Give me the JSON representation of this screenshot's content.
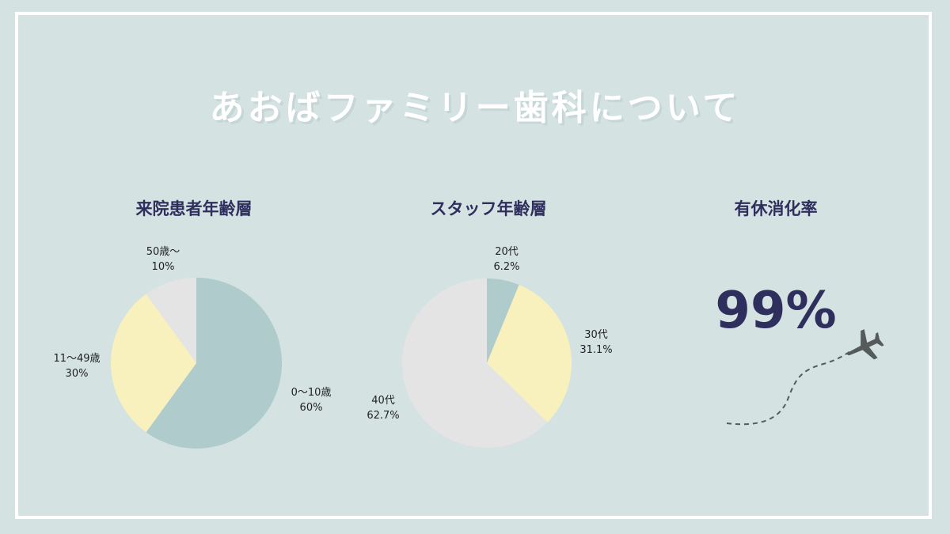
{
  "title": "あおばファミリー歯科について",
  "panels": {
    "patients_title": "来院患者年齢層",
    "staff_title": "スタッフ年齢層",
    "vacation_title": "有休消化率",
    "vacation_value": "99%"
  },
  "colors": {
    "background": "#d4e2e2",
    "frame": "#ffffff",
    "heading": "#2f2f5e",
    "teal": "#b0cbcb",
    "yellow": "#f8f1bd",
    "gray": "#e4e4e4",
    "plane": "#555a5a"
  },
  "icons": [
    "airplane-icon",
    "dashed-flight-path"
  ],
  "chart_data": [
    {
      "type": "pie",
      "title": "来院患者年齢層",
      "slices": [
        {
          "label": "0〜10歳",
          "value": 60,
          "value_label": "60%",
          "color": "#b0cbcb"
        },
        {
          "label": "11〜49歳",
          "value": 30,
          "value_label": "30%",
          "color": "#f8f1bd"
        },
        {
          "label": "50歳〜",
          "value": 10,
          "value_label": "10%",
          "color": "#e4e4e4"
        }
      ]
    },
    {
      "type": "pie",
      "title": "スタッフ年齢層",
      "slices": [
        {
          "label": "20代",
          "value": 6.2,
          "value_label": "6.2%",
          "color": "#b0cbcb"
        },
        {
          "label": "30代",
          "value": 31.1,
          "value_label": "31.1%",
          "color": "#f8f1bd"
        },
        {
          "label": "40代",
          "value": 62.7,
          "value_label": "62.7%",
          "color": "#e4e4e4"
        }
      ]
    }
  ]
}
